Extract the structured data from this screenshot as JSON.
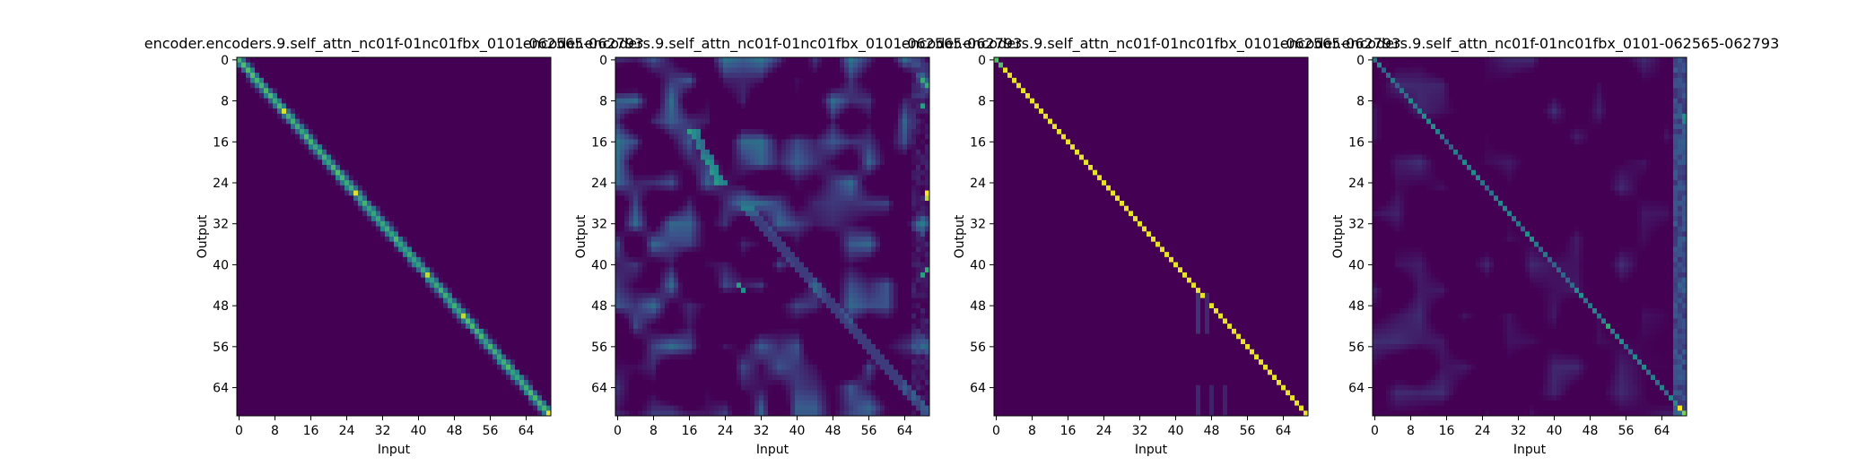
{
  "figure": {
    "background": "#ffffff",
    "colormap": [
      "#440154",
      "#3b528b",
      "#21918c",
      "#5ec962",
      "#fde725"
    ]
  },
  "chart_data": [
    {
      "type": "heatmap",
      "title": "encoder.encoders.9.self_attn_nc01f-01nc01fbx_0101-062565-062793",
      "xlabel": "Input",
      "ylabel": "Output",
      "xticks": [
        0,
        8,
        16,
        24,
        32,
        40,
        48,
        56,
        64
      ],
      "yticks": [
        0,
        8,
        16,
        24,
        32,
        40,
        48,
        56,
        64
      ],
      "size": 70,
      "pattern": "diagonal",
      "diagonal_peaks": [
        [
          10,
          0.95
        ],
        [
          26,
          0.95
        ],
        [
          42,
          0.9
        ],
        [
          50,
          0.9
        ],
        [
          69,
          0.95
        ]
      ]
    },
    {
      "type": "heatmap",
      "title": "encoder.encoders.9.self_attn_nc01f-01nc01fbx_0101-062565-062793",
      "xlabel": "Input",
      "ylabel": "Output",
      "xticks": [
        0,
        8,
        16,
        24,
        32,
        40,
        48,
        56,
        64
      ],
      "yticks": [
        0,
        8,
        16,
        24,
        32,
        40,
        48,
        56,
        64
      ],
      "size": 70,
      "pattern": "diffuse",
      "hot_cells": [
        [
          26,
          69,
          1.0
        ],
        [
          27,
          69,
          0.9
        ],
        [
          4,
          68,
          0.6
        ],
        [
          5,
          69,
          0.6
        ],
        [
          9,
          68,
          0.55
        ],
        [
          41,
          69,
          0.6
        ],
        [
          42,
          68,
          0.55
        ],
        [
          44,
          27,
          0.55
        ],
        [
          45,
          28,
          0.5
        ]
      ]
    },
    {
      "type": "heatmap",
      "title": "encoder.encoders.9.self_attn_nc01f-01nc01fbx_0101-062565-062793",
      "xlabel": "Input",
      "ylabel": "Output",
      "xticks": [
        0,
        8,
        16,
        24,
        32,
        40,
        48,
        56,
        64
      ],
      "yticks": [
        0,
        8,
        16,
        24,
        32,
        40,
        48,
        56,
        64
      ],
      "size": 70,
      "pattern": "sharp-diagonal"
    },
    {
      "type": "heatmap",
      "title": "encoder.encoders.9.self_attn_nc01f-01nc01fbx_0101-062565-062793",
      "xlabel": "Input",
      "ylabel": "Output",
      "xticks": [
        0,
        8,
        16,
        24,
        32,
        40,
        48,
        56,
        64
      ],
      "yticks": [
        0,
        8,
        16,
        24,
        32,
        40,
        48,
        56,
        64
      ],
      "size": 70,
      "pattern": "faint-diagonal",
      "hot_cells": [
        [
          68,
          68,
          1.0
        ],
        [
          69,
          69,
          0.8
        ],
        [
          52,
          52,
          0.6
        ],
        [
          11,
          69,
          0.5
        ],
        [
          12,
          69,
          0.45
        ]
      ]
    }
  ]
}
